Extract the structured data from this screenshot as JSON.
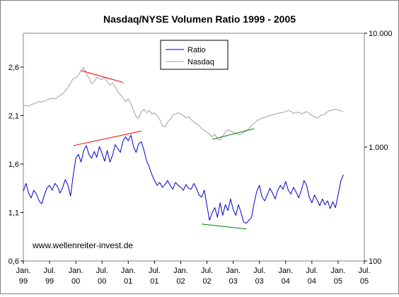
{
  "chart_data": {
    "type": "line",
    "title": "Nasdaq/NYSE Volumen Ratio 1999 - 2005",
    "watermark": "www.wellenreiter-invest.de",
    "x_ticks": [
      {
        "line1": "Jan.",
        "line2": "99",
        "t": 1999.0
      },
      {
        "line1": "Jul.",
        "line2": "99",
        "t": 1999.5
      },
      {
        "line1": "Jan.",
        "line2": "00",
        "t": 2000.0
      },
      {
        "line1": "Jul.",
        "line2": "00",
        "t": 2000.5
      },
      {
        "line1": "Jan.",
        "line2": "01",
        "t": 2001.0
      },
      {
        "line1": "Jul.",
        "line2": "01",
        "t": 2001.5
      },
      {
        "line1": "Jan.",
        "line2": "02",
        "t": 2002.0
      },
      {
        "line1": "Jul.",
        "line2": "02",
        "t": 2002.5
      },
      {
        "line1": "Jan.",
        "line2": "03",
        "t": 2003.0
      },
      {
        "line1": "Jul.",
        "line2": "03",
        "t": 2003.5
      },
      {
        "line1": "Jan.",
        "line2": "04",
        "t": 2004.0
      },
      {
        "line1": "Jul.",
        "line2": "04",
        "t": 2004.5
      },
      {
        "line1": "Jan.",
        "line2": "05",
        "t": 2005.0
      },
      {
        "line1": "Jul.",
        "line2": "05",
        "t": 2005.5
      }
    ],
    "xlim": [
      1999.0,
      2005.5
    ],
    "y_left": {
      "ticks": [
        0.6,
        1.1,
        1.6,
        2.1,
        2.6
      ],
      "labels": [
        "0,6",
        "1,1",
        "1,6",
        "2,1",
        "2,6"
      ],
      "ylim": [
        0.6,
        2.95
      ]
    },
    "y_right": {
      "scale": "log",
      "ticks": [
        100,
        1000,
        10000
      ],
      "labels": [
        "100",
        "1.000",
        "10.000"
      ],
      "ylim": [
        100,
        10000
      ]
    },
    "legend": {
      "position": "top-center"
    },
    "series": [
      {
        "name": "Ratio",
        "axis": "left",
        "color": "#0000c8",
        "points": [
          [
            1999.0,
            1.32
          ],
          [
            1999.05,
            1.4
          ],
          [
            1999.1,
            1.3
          ],
          [
            1999.15,
            1.25
          ],
          [
            1999.2,
            1.33
          ],
          [
            1999.25,
            1.29
          ],
          [
            1999.3,
            1.22
          ],
          [
            1999.35,
            1.19
          ],
          [
            1999.4,
            1.28
          ],
          [
            1999.45,
            1.35
          ],
          [
            1999.5,
            1.38
          ],
          [
            1999.55,
            1.33
          ],
          [
            1999.6,
            1.4
          ],
          [
            1999.65,
            1.37
          ],
          [
            1999.7,
            1.3
          ],
          [
            1999.75,
            1.36
          ],
          [
            1999.8,
            1.44
          ],
          [
            1999.85,
            1.38
          ],
          [
            1999.9,
            1.27
          ],
          [
            1999.95,
            1.48
          ],
          [
            2000.0,
            1.66
          ],
          [
            2000.05,
            1.7
          ],
          [
            2000.1,
            1.62
          ],
          [
            2000.15,
            1.74
          ],
          [
            2000.2,
            1.79
          ],
          [
            2000.25,
            1.7
          ],
          [
            2000.3,
            1.66
          ],
          [
            2000.35,
            1.73
          ],
          [
            2000.4,
            1.67
          ],
          [
            2000.45,
            1.78
          ],
          [
            2000.5,
            1.71
          ],
          [
            2000.55,
            1.63
          ],
          [
            2000.6,
            1.74
          ],
          [
            2000.65,
            1.62
          ],
          [
            2000.7,
            1.69
          ],
          [
            2000.75,
            1.8
          ],
          [
            2000.8,
            1.76
          ],
          [
            2000.85,
            1.72
          ],
          [
            2000.9,
            1.84
          ],
          [
            2000.95,
            1.88
          ],
          [
            2001.0,
            1.84
          ],
          [
            2001.05,
            1.9
          ],
          [
            2001.1,
            1.78
          ],
          [
            2001.15,
            1.72
          ],
          [
            2001.2,
            1.81
          ],
          [
            2001.25,
            1.83
          ],
          [
            2001.3,
            1.74
          ],
          [
            2001.35,
            1.63
          ],
          [
            2001.4,
            1.57
          ],
          [
            2001.45,
            1.49
          ],
          [
            2001.5,
            1.43
          ],
          [
            2001.55,
            1.38
          ],
          [
            2001.6,
            1.41
          ],
          [
            2001.65,
            1.36
          ],
          [
            2001.7,
            1.39
          ],
          [
            2001.75,
            1.43
          ],
          [
            2001.8,
            1.38
          ],
          [
            2001.85,
            1.34
          ],
          [
            2001.9,
            1.41
          ],
          [
            2001.95,
            1.38
          ],
          [
            2002.0,
            1.36
          ],
          [
            2002.05,
            1.33
          ],
          [
            2002.1,
            1.39
          ],
          [
            2002.15,
            1.35
          ],
          [
            2002.2,
            1.34
          ],
          [
            2002.25,
            1.4
          ],
          [
            2002.3,
            1.35
          ],
          [
            2002.35,
            1.28
          ],
          [
            2002.4,
            1.26
          ],
          [
            2002.45,
            1.33
          ],
          [
            2002.5,
            1.17
          ],
          [
            2002.55,
            1.02
          ],
          [
            2002.6,
            1.1
          ],
          [
            2002.65,
            1.15
          ],
          [
            2002.7,
            1.05
          ],
          [
            2002.75,
            1.2
          ],
          [
            2002.8,
            1.07
          ],
          [
            2002.85,
            1.18
          ],
          [
            2002.9,
            1.12
          ],
          [
            2002.95,
            1.24
          ],
          [
            2003.0,
            1.13
          ],
          [
            2003.05,
            1.07
          ],
          [
            2003.1,
            1.18
          ],
          [
            2003.15,
            1.1
          ],
          [
            2003.2,
            1.0
          ],
          [
            2003.25,
            0.99
          ],
          [
            2003.3,
            1.02
          ],
          [
            2003.35,
            1.05
          ],
          [
            2003.4,
            1.2
          ],
          [
            2003.45,
            1.32
          ],
          [
            2003.5,
            1.38
          ],
          [
            2003.55,
            1.26
          ],
          [
            2003.6,
            1.22
          ],
          [
            2003.65,
            1.28
          ],
          [
            2003.7,
            1.35
          ],
          [
            2003.75,
            1.3
          ],
          [
            2003.8,
            1.24
          ],
          [
            2003.85,
            1.33
          ],
          [
            2003.9,
            1.38
          ],
          [
            2003.95,
            1.34
          ],
          [
            2004.0,
            1.42
          ],
          [
            2004.05,
            1.33
          ],
          [
            2004.1,
            1.29
          ],
          [
            2004.15,
            1.36
          ],
          [
            2004.2,
            1.31
          ],
          [
            2004.25,
            1.25
          ],
          [
            2004.3,
            1.33
          ],
          [
            2004.35,
            1.43
          ],
          [
            2004.4,
            1.38
          ],
          [
            2004.45,
            1.26
          ],
          [
            2004.5,
            1.2
          ],
          [
            2004.55,
            1.28
          ],
          [
            2004.6,
            1.23
          ],
          [
            2004.65,
            1.17
          ],
          [
            2004.7,
            1.24
          ],
          [
            2004.75,
            1.18
          ],
          [
            2004.8,
            1.22
          ],
          [
            2004.85,
            1.14
          ],
          [
            2004.9,
            1.21
          ],
          [
            2004.95,
            1.15
          ],
          [
            2005.0,
            1.28
          ],
          [
            2005.05,
            1.42
          ],
          [
            2005.1,
            1.49
          ]
        ]
      },
      {
        "name": "Nasdaq",
        "axis": "right",
        "color": "#a0a0a0",
        "points": [
          [
            1999.0,
            2300
          ],
          [
            1999.05,
            2340
          ],
          [
            1999.1,
            2280
          ],
          [
            1999.15,
            2360
          ],
          [
            1999.2,
            2400
          ],
          [
            1999.25,
            2450
          ],
          [
            1999.3,
            2520
          ],
          [
            1999.35,
            2480
          ],
          [
            1999.4,
            2540
          ],
          [
            1999.45,
            2600
          ],
          [
            1999.5,
            2650
          ],
          [
            1999.55,
            2700
          ],
          [
            1999.6,
            2640
          ],
          [
            1999.65,
            2720
          ],
          [
            1999.7,
            2850
          ],
          [
            1999.75,
            2950
          ],
          [
            1999.8,
            3100
          ],
          [
            1999.85,
            3350
          ],
          [
            1999.9,
            3650
          ],
          [
            1999.95,
            4000
          ],
          [
            2000.0,
            4050
          ],
          [
            2000.05,
            4300
          ],
          [
            2000.1,
            4700
          ],
          [
            2000.15,
            5000
          ],
          [
            2000.2,
            4400
          ],
          [
            2000.25,
            4050
          ],
          [
            2000.3,
            3600
          ],
          [
            2000.35,
            3750
          ],
          [
            2000.4,
            4100
          ],
          [
            2000.45,
            4000
          ],
          [
            2000.5,
            3900
          ],
          [
            2000.55,
            4100
          ],
          [
            2000.6,
            3750
          ],
          [
            2000.65,
            3500
          ],
          [
            2000.7,
            3650
          ],
          [
            2000.75,
            3400
          ],
          [
            2000.8,
            3050
          ],
          [
            2000.85,
            2900
          ],
          [
            2000.9,
            2700
          ],
          [
            2000.95,
            2500
          ],
          [
            2001.0,
            2650
          ],
          [
            2001.05,
            2400
          ],
          [
            2001.1,
            2100
          ],
          [
            2001.15,
            1850
          ],
          [
            2001.2,
            1800
          ],
          [
            2001.25,
            2050
          ],
          [
            2001.3,
            2150
          ],
          [
            2001.35,
            2000
          ],
          [
            2001.4,
            2100
          ],
          [
            2001.45,
            1950
          ],
          [
            2001.5,
            2000
          ],
          [
            2001.55,
            1900
          ],
          [
            2001.6,
            1750
          ],
          [
            2001.65,
            1550
          ],
          [
            2001.7,
            1500
          ],
          [
            2001.75,
            1650
          ],
          [
            2001.8,
            1750
          ],
          [
            2001.85,
            1900
          ],
          [
            2001.9,
            1950
          ],
          [
            2001.95,
            2000
          ],
          [
            2002.0,
            1950
          ],
          [
            2002.05,
            1900
          ],
          [
            2002.1,
            1800
          ],
          [
            2002.15,
            1850
          ],
          [
            2002.2,
            1750
          ],
          [
            2002.25,
            1650
          ],
          [
            2002.3,
            1600
          ],
          [
            2002.35,
            1550
          ],
          [
            2002.4,
            1450
          ],
          [
            2002.45,
            1400
          ],
          [
            2002.5,
            1350
          ],
          [
            2002.55,
            1300
          ],
          [
            2002.6,
            1230
          ],
          [
            2002.65,
            1300
          ],
          [
            2002.7,
            1180
          ],
          [
            2002.75,
            1150
          ],
          [
            2002.8,
            1250
          ],
          [
            2002.85,
            1350
          ],
          [
            2002.9,
            1420
          ],
          [
            2002.95,
            1380
          ],
          [
            2003.0,
            1350
          ],
          [
            2003.05,
            1320
          ],
          [
            2003.1,
            1280
          ],
          [
            2003.15,
            1300
          ],
          [
            2003.2,
            1340
          ],
          [
            2003.25,
            1400
          ],
          [
            2003.3,
            1450
          ],
          [
            2003.35,
            1550
          ],
          [
            2003.4,
            1620
          ],
          [
            2003.45,
            1700
          ],
          [
            2003.5,
            1750
          ],
          [
            2003.55,
            1800
          ],
          [
            2003.6,
            1820
          ],
          [
            2003.65,
            1850
          ],
          [
            2003.7,
            1900
          ],
          [
            2003.75,
            1920
          ],
          [
            2003.8,
            1950
          ],
          [
            2003.85,
            1980
          ],
          [
            2003.9,
            2000
          ],
          [
            2003.95,
            2020
          ],
          [
            2004.0,
            2050
          ],
          [
            2004.05,
            2100
          ],
          [
            2004.1,
            2050
          ],
          [
            2004.15,
            1980
          ],
          [
            2004.2,
            2000
          ],
          [
            2004.25,
            2030
          ],
          [
            2004.3,
            1950
          ],
          [
            2004.35,
            2000
          ],
          [
            2004.4,
            2050
          ],
          [
            2004.45,
            1980
          ],
          [
            2004.5,
            1900
          ],
          [
            2004.55,
            1850
          ],
          [
            2004.6,
            1800
          ],
          [
            2004.65,
            1870
          ],
          [
            2004.7,
            1920
          ],
          [
            2004.75,
            1950
          ],
          [
            2004.8,
            2050
          ],
          [
            2004.85,
            2100
          ],
          [
            2004.9,
            2120
          ],
          [
            2004.95,
            2150
          ],
          [
            2005.0,
            2120
          ],
          [
            2005.05,
            2080
          ],
          [
            2005.1,
            2050
          ]
        ]
      }
    ],
    "trendlines": [
      {
        "axis": "right",
        "color": "#ff0000",
        "from": [
          2000.1,
          4700
        ],
        "to": [
          2000.9,
          3700
        ]
      },
      {
        "axis": "left",
        "color": "#ff0000",
        "from": [
          1999.95,
          1.79
        ],
        "to": [
          2001.25,
          1.94
        ]
      },
      {
        "axis": "right",
        "color": "#008000",
        "from": [
          2002.6,
          1170
        ],
        "to": [
          2003.4,
          1450
        ]
      },
      {
        "axis": "left",
        "color": "#008000",
        "from": [
          2002.4,
          0.98
        ],
        "to": [
          2003.25,
          0.93
        ]
      }
    ]
  }
}
